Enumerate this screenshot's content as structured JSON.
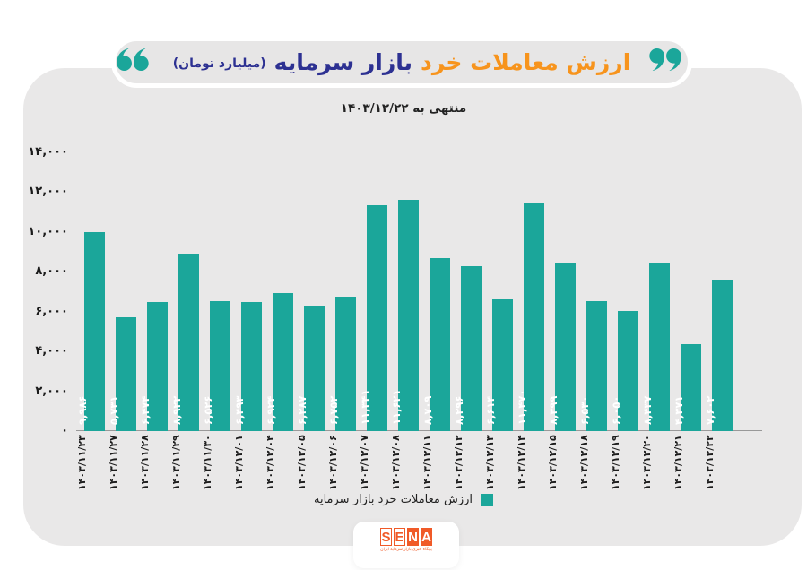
{
  "title": {
    "part_highlight": "ارزش معاملات خرد",
    "part_rest": "بازار سرمایه",
    "unit": "(میلیارد تومان)",
    "subtitle": "منتهی به ۱۴۰۳/۱۲/۲۲"
  },
  "legend": {
    "label": "ارزش معاملات خرد بازار سرمایه"
  },
  "logo": {
    "letters": [
      "S",
      "E",
      "N",
      "A"
    ],
    "tagline": "پایگاه خبری بازار سرمایه ایران"
  },
  "colors": {
    "teal": "#1ba69a",
    "orange": "#f7941d",
    "navy": "#2d3192",
    "card": "#e9e8e8",
    "pill": "#e7e6e6",
    "logo_orange": "#f05a28"
  },
  "chart_data": {
    "type": "bar",
    "title": "ارزش معاملات خرد بازار سرمایه (میلیارد تومان)",
    "subtitle": "منتهی به ۱۴۰۳/۱۲/۲۲",
    "xlabel": "",
    "ylabel": "",
    "ylim": [
      0,
      14000
    ],
    "grid": false,
    "legend_position": "bottom",
    "bar_color": "#1ba69a",
    "categories": [
      "۱۴۰۳/۱۱/۲۳",
      "۱۴۰۳/۱۱/۲۷",
      "۱۴۰۳/۱۱/۲۸",
      "۱۴۰۳/۱۱/۲۹",
      "۱۴۰۳/۱۱/۳۰",
      "۱۴۰۳/۱۲/۰۱",
      "۱۴۰۳/۱۲/۰۴",
      "۱۴۰۳/۱۲/۰۵",
      "۱۴۰۳/۱۲/۰۶",
      "۱۴۰۳/۱۲/۰۷",
      "۱۴۰۳/۱۲/۰۸",
      "۱۴۰۳/۱۲/۱۱",
      "۱۴۰۳/۱۲/۱۲",
      "۱۴۰۳/۱۲/۱۳",
      "۱۴۰۳/۱۲/۱۴",
      "۱۴۰۳/۱۲/۱۵",
      "۱۴۰۳/۱۲/۱۸",
      "۱۴۰۳/۱۲/۱۹",
      "۱۴۰۳/۱۲/۲۰",
      "۱۴۰۳/۱۲/۲۱",
      "۱۴۰۳/۱۲/۲۲"
    ],
    "values": [
      9986,
      5731,
      6474,
      8922,
      6526,
      6493,
      6924,
      6287,
      6752,
      11341,
      11621,
      8709,
      8296,
      6614,
      11470,
      8399,
      6530,
      6050,
      8437,
      4371,
      7602
    ],
    "value_labels": [
      "۹,۹۸۶",
      "۵,۷۳۱",
      "۶,۴۷۴",
      "۸,۹۲۲",
      "۶,۵۲۶",
      "۶,۴۹۳",
      "۶,۹۲۴",
      "۶,۲۸۷",
      "۶,۷۵۲",
      "۱۱,۳۴۱",
      "۱۱,۶۲۱",
      "۸,۷۰۹",
      "۸,۲۹۶",
      "۶,۶۱۴",
      "۱۱,۴۷۰",
      "۸,۳۹۹",
      "۶,۵۳۰",
      "۶,۰۵۰",
      "۸,۴۳۷",
      "۴,۳۷۱",
      "۷,۶۰۲"
    ],
    "ytick_values": [
      0,
      2000,
      4000,
      6000,
      8000,
      10000,
      12000,
      14000
    ],
    "ytick_labels": [
      "۰",
      "۲,۰۰۰",
      "۴,۰۰۰",
      "۶,۰۰۰",
      "۸,۰۰۰",
      "۱۰,۰۰۰",
      "۱۲,۰۰۰",
      "۱۴,۰۰۰"
    ]
  }
}
